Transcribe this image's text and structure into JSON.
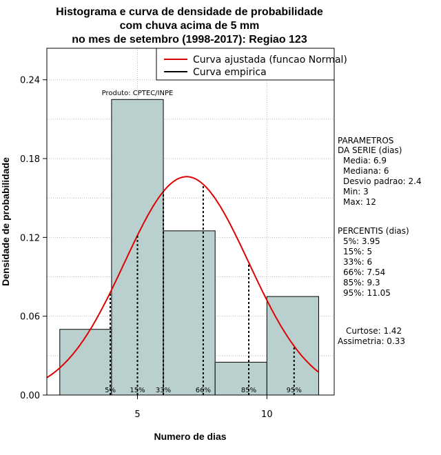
{
  "chart_data": {
    "type": "histogram",
    "title_lines": [
      "Histograma e curva de densidade de probabilidade",
      "com chuva acima de 5 mm",
      "no mes de setembro (1998-2017): Regiao 123"
    ],
    "xlabel": "Numero de dias",
    "ylabel": "Densidade de probabilidade",
    "xlim": [
      1.5,
      12.6
    ],
    "ylim": [
      0,
      0.264
    ],
    "x_ticks": [
      5,
      10
    ],
    "y_ticks": [
      0.0,
      0.06,
      0.12,
      0.18,
      0.24
    ],
    "y_tick_labels": [
      "0.00",
      "0.06",
      "0.12",
      "0.18",
      "0.24"
    ],
    "grid": true,
    "bar_color": "#b9d0cf",
    "bins": [
      {
        "x0": 2,
        "x1": 4,
        "density": 0.05
      },
      {
        "x0": 4,
        "x1": 6,
        "density": 0.225
      },
      {
        "x0": 6,
        "x1": 8,
        "density": 0.125
      },
      {
        "x0": 8,
        "x1": 10,
        "density": 0.025
      },
      {
        "x0": 10,
        "x1": 12,
        "density": 0.075
      }
    ],
    "fitted_curve": {
      "name": "Curva ajustada (funcao Normal)",
      "dist": "normal",
      "mean": 6.9,
      "sd": 2.4,
      "color": "#e00000"
    },
    "empirical_curve": {
      "name": "Curva empirica",
      "color": "#000000"
    },
    "percentiles": [
      {
        "label": "5%",
        "value": 3.95
      },
      {
        "label": "15%",
        "value": 5
      },
      {
        "label": "33%",
        "value": 6
      },
      {
        "label": "66%",
        "value": 7.54
      },
      {
        "label": "85%",
        "value": 9.3
      },
      {
        "label": "95%",
        "value": 11.05
      }
    ],
    "product_label": "Produto: CPTEC/INPE",
    "legend_position": "top-right"
  },
  "side_panel": {
    "params_title_1": "PARAMETROS",
    "params_title_2": "DA SERIE (dias)",
    "params": [
      "Media: 6.9",
      "Mediana: 6",
      "Desvio padrao: 2.4",
      "Min: 3",
      "Max: 12"
    ],
    "percentis_title": "PERCENTIS (dias)",
    "percentis": [
      "5%: 3.95",
      "15%: 5",
      "33%: 6",
      "66%: 7.54",
      "85%: 9.3",
      "95%: 11.05"
    ],
    "curtose": "Curtose: 1.42",
    "assimetria": "Assimetria: 0.33"
  }
}
